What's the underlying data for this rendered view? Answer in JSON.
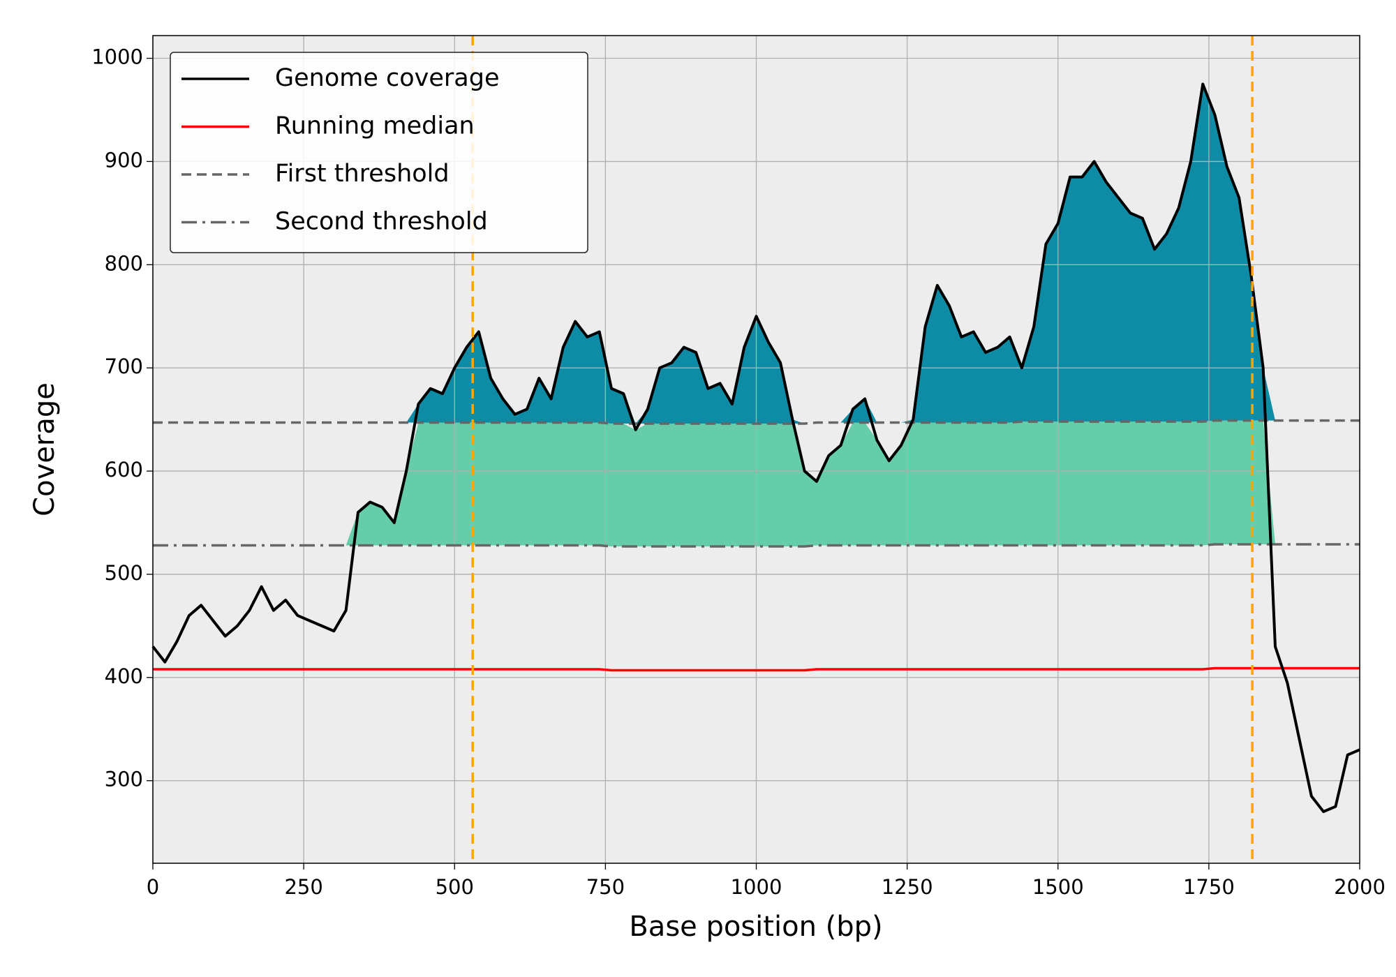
{
  "chart_data": {
    "type": "line",
    "x_label": "Base position (bp)",
    "y_label": "Coverage",
    "x": [
      0,
      20,
      40,
      60,
      80,
      100,
      120,
      140,
      160,
      180,
      200,
      220,
      240,
      260,
      280,
      300,
      320,
      340,
      360,
      380,
      400,
      420,
      440,
      460,
      480,
      500,
      520,
      540,
      560,
      580,
      600,
      620,
      640,
      660,
      680,
      700,
      720,
      740,
      760,
      780,
      800,
      820,
      840,
      860,
      880,
      900,
      920,
      940,
      960,
      980,
      1000,
      1020,
      1040,
      1060,
      1080,
      1100,
      1120,
      1140,
      1160,
      1180,
      1200,
      1220,
      1240,
      1260,
      1280,
      1300,
      1320,
      1340,
      1360,
      1380,
      1400,
      1420,
      1440,
      1460,
      1480,
      1500,
      1520,
      1540,
      1560,
      1580,
      1600,
      1620,
      1640,
      1660,
      1680,
      1700,
      1720,
      1740,
      1760,
      1780,
      1800,
      1820,
      1840,
      1860,
      1880,
      1900,
      1920,
      1940,
      1960,
      1980,
      2000
    ],
    "series": [
      {
        "name": "Genome coverage",
        "color": "#000000",
        "linestyle": "solid",
        "values": [
          430,
          415,
          435,
          460,
          470,
          455,
          440,
          450,
          465,
          488,
          465,
          475,
          460,
          455,
          450,
          445,
          465,
          560,
          570,
          565,
          550,
          600,
          665,
          680,
          675,
          700,
          720,
          735,
          690,
          670,
          655,
          660,
          690,
          670,
          720,
          745,
          730,
          735,
          680,
          675,
          640,
          660,
          700,
          705,
          720,
          715,
          680,
          685,
          665,
          720,
          750,
          725,
          705,
          650,
          600,
          590,
          615,
          625,
          660,
          670,
          630,
          610,
          625,
          650,
          740,
          780,
          760,
          730,
          735,
          715,
          720,
          730,
          700,
          740,
          820,
          840,
          885,
          885,
          900,
          880,
          865,
          850,
          845,
          815,
          830,
          855,
          900,
          975,
          945,
          895,
          865,
          790,
          700,
          430,
          395,
          340,
          285,
          270,
          275,
          325,
          330
        ]
      },
      {
        "name": "Running median",
        "color": "#ff0000",
        "linestyle": "solid",
        "values": [
          408,
          408,
          408,
          408,
          408,
          408,
          408,
          408,
          408,
          408,
          408,
          408,
          408,
          408,
          408,
          408,
          408,
          408,
          408,
          408,
          408,
          408,
          408,
          408,
          408,
          408,
          408,
          408,
          408,
          408,
          408,
          408,
          408,
          408,
          408,
          408,
          408,
          408,
          407,
          407,
          407,
          407,
          407,
          407,
          407,
          407,
          407,
          407,
          407,
          407,
          407,
          407,
          407,
          407,
          407,
          408,
          408,
          408,
          408,
          408,
          408,
          408,
          408,
          408,
          408,
          408,
          408,
          408,
          408,
          408,
          408,
          408,
          408,
          408,
          408,
          408,
          408,
          408,
          408,
          408,
          408,
          408,
          408,
          408,
          408,
          408,
          408,
          408,
          409,
          409,
          409,
          409,
          409,
          409,
          409,
          409,
          409,
          409,
          409,
          409,
          409
        ]
      },
      {
        "name": "First threshold",
        "color": "#666666",
        "linestyle": "dashed",
        "values": [
          647,
          647,
          647,
          647,
          647,
          647,
          647,
          647,
          647,
          647,
          647,
          647,
          647,
          647,
          647,
          647,
          647,
          647,
          647,
          647,
          647,
          647,
          647,
          647,
          647,
          647,
          647,
          647,
          647,
          647,
          647,
          647,
          647,
          647,
          647,
          647,
          647,
          647,
          646,
          646,
          646,
          646,
          646,
          646,
          646,
          646,
          646,
          646,
          646,
          646,
          646,
          646,
          646,
          646,
          646,
          647,
          647,
          647,
          647,
          647,
          647,
          647,
          647,
          647,
          647,
          647,
          647,
          647,
          647,
          647,
          647,
          647,
          648,
          648,
          648,
          648,
          648,
          648,
          648,
          648,
          648,
          648,
          648,
          648,
          648,
          648,
          648,
          648,
          649,
          649,
          649,
          649,
          649,
          649,
          649,
          649,
          649,
          649,
          649,
          649,
          649
        ]
      },
      {
        "name": "Second threshold",
        "color": "#666666",
        "linestyle": "dashdot",
        "values": [
          528,
          528,
          528,
          528,
          528,
          528,
          528,
          528,
          528,
          528,
          528,
          528,
          528,
          528,
          528,
          528,
          528,
          528,
          528,
          528,
          528,
          528,
          528,
          528,
          528,
          528,
          528,
          528,
          528,
          528,
          528,
          528,
          528,
          528,
          528,
          528,
          528,
          528,
          527,
          527,
          527,
          527,
          527,
          527,
          527,
          527,
          527,
          527,
          527,
          527,
          527,
          527,
          527,
          527,
          527,
          528,
          528,
          528,
          528,
          528,
          528,
          528,
          528,
          528,
          528,
          528,
          528,
          528,
          528,
          528,
          528,
          528,
          528,
          528,
          528,
          528,
          528,
          528,
          528,
          528,
          528,
          528,
          528,
          528,
          528,
          528,
          528,
          528,
          529,
          529,
          529,
          529,
          529,
          529,
          529,
          529,
          529,
          529,
          529,
          529,
          529
        ]
      }
    ],
    "fill_colors": {
      "above_first": "#0e8ca6",
      "between": "#66cdaa"
    },
    "vlines": [
      530,
      1822
    ],
    "vline_color": "#ffa500",
    "xlim": [
      0,
      2000
    ],
    "xticks": [
      0,
      250,
      500,
      750,
      1000,
      1250,
      1500,
      1750,
      2000
    ],
    "ylim": [
      220,
      1022
    ],
    "yticks": [
      300,
      400,
      500,
      600,
      700,
      800,
      900,
      1000
    ],
    "grid": true,
    "legend": "upper left"
  }
}
